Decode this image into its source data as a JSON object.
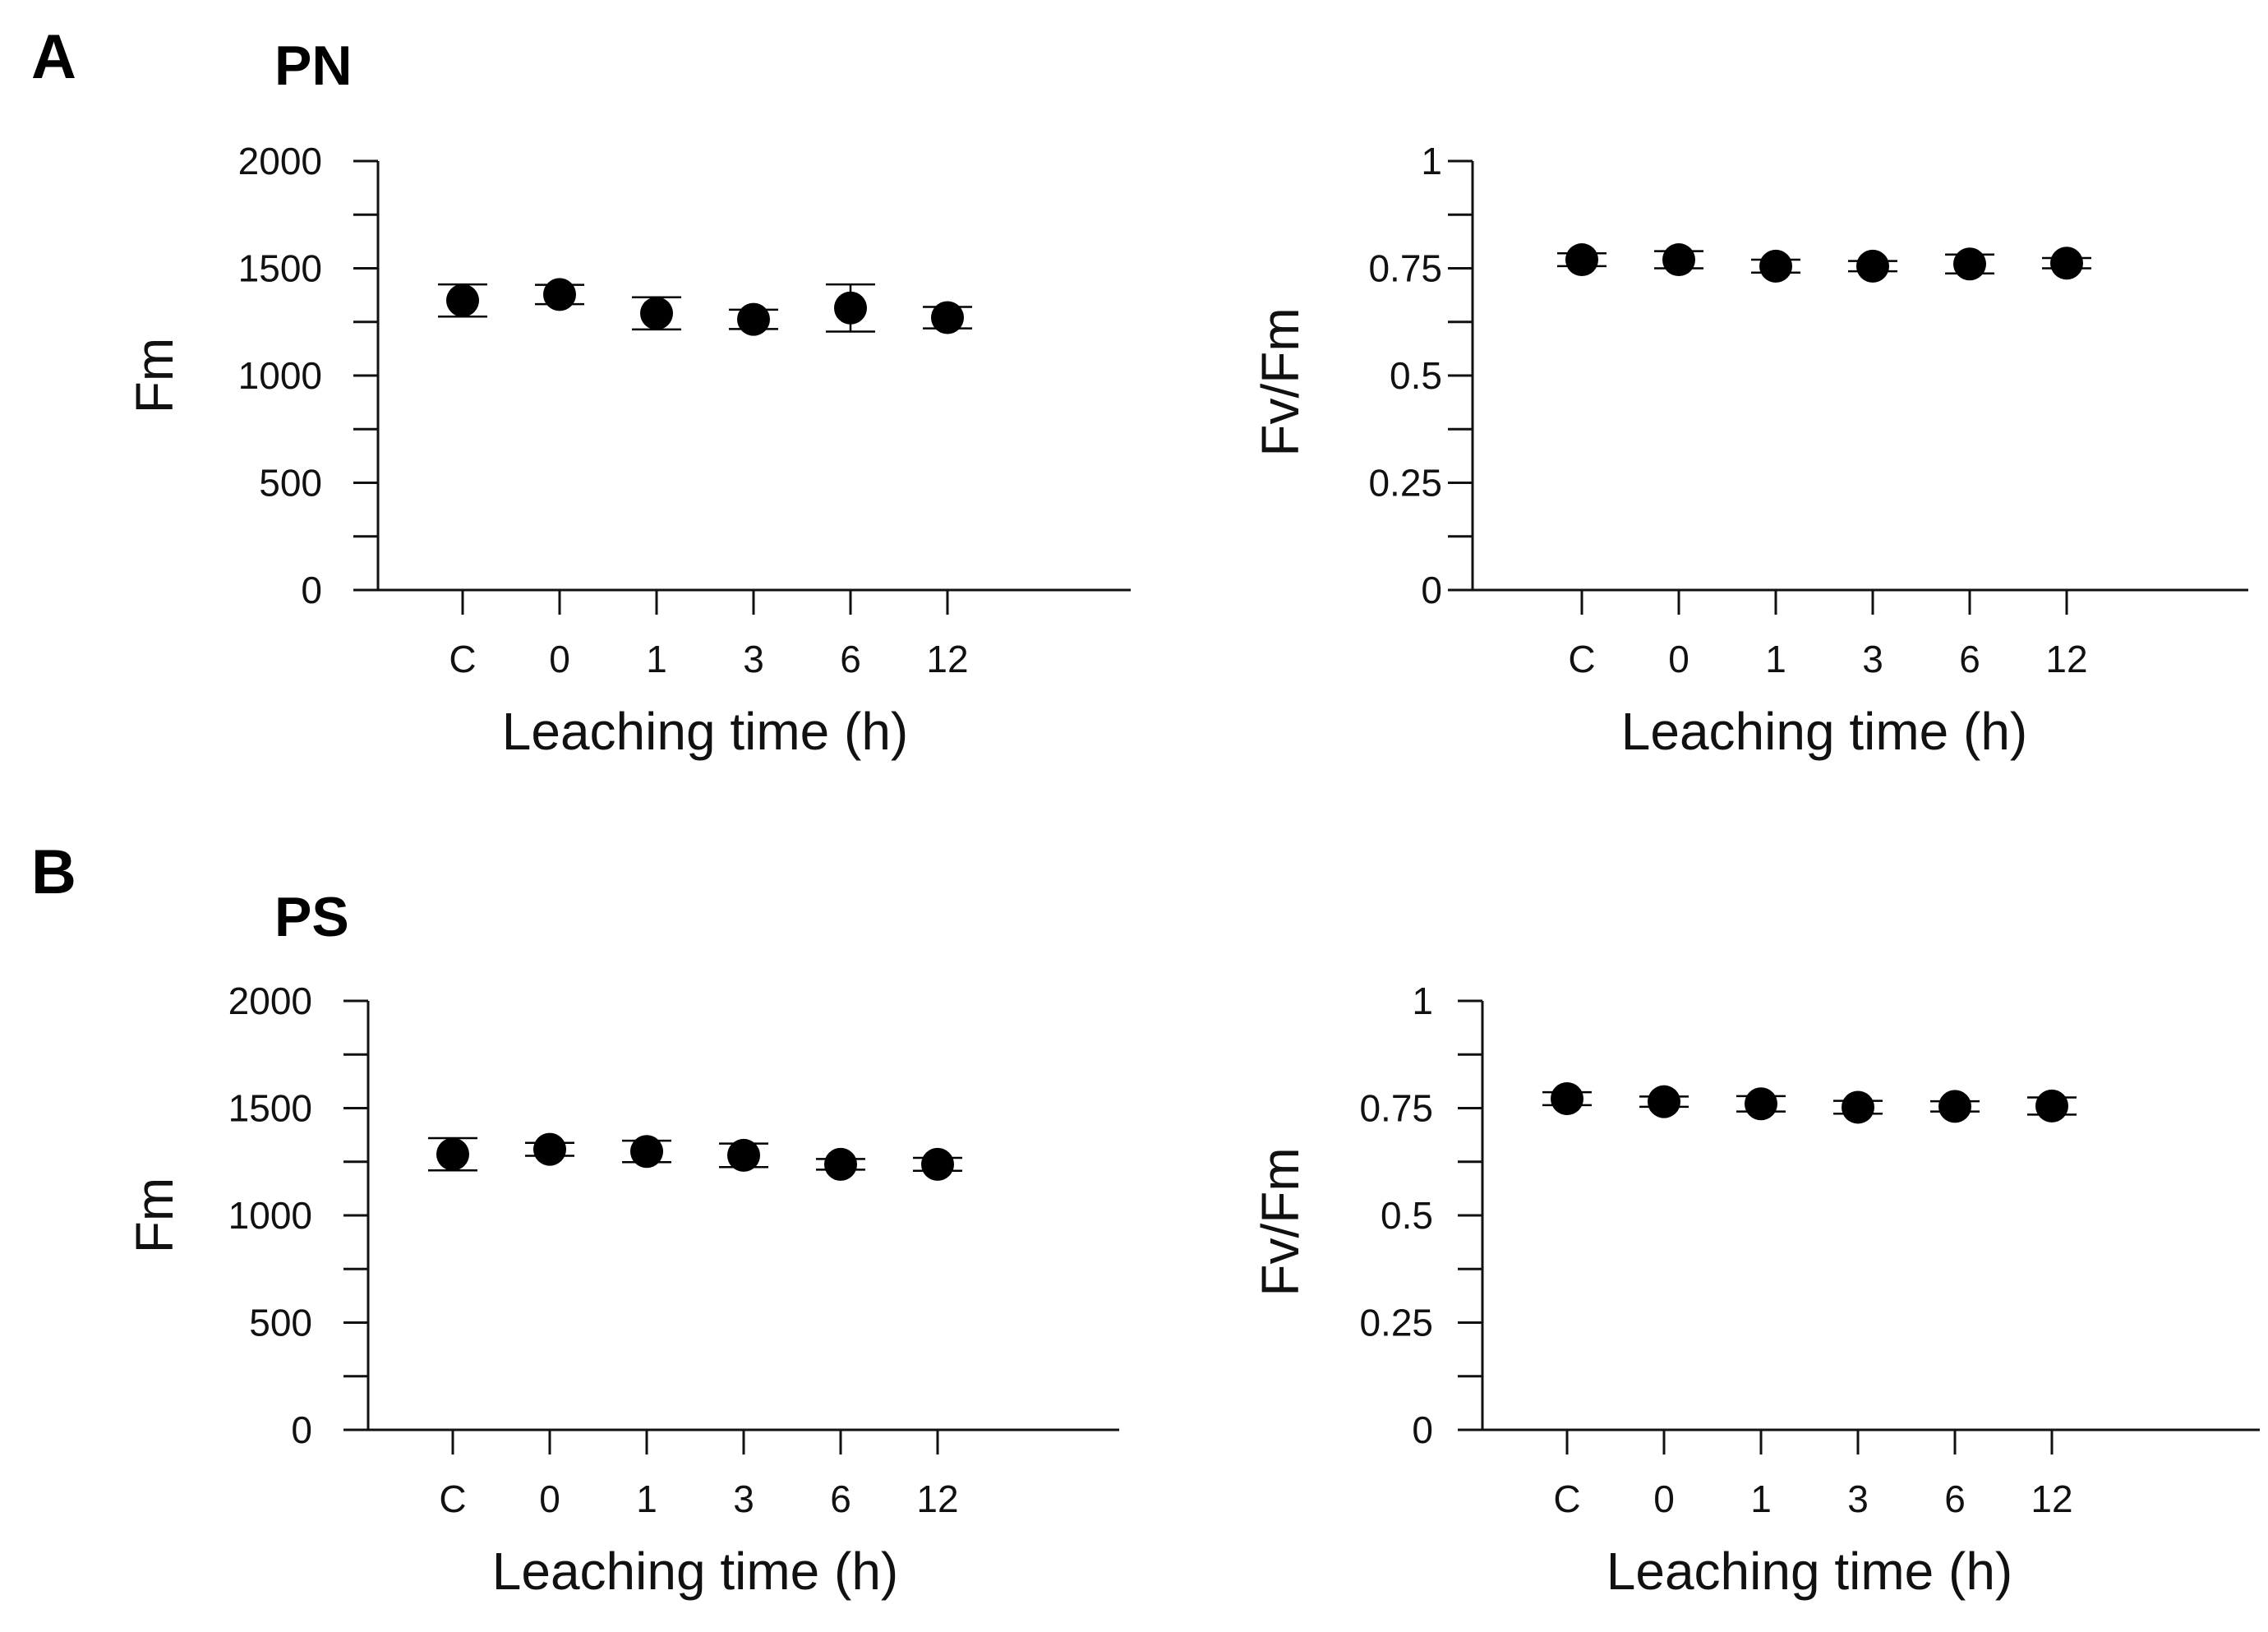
{
  "figure": {
    "panel_a_label": "A",
    "panel_a_title": "PN",
    "panel_b_label": "B",
    "panel_b_title": "PS"
  },
  "colors": {
    "ink": "#000000",
    "axis": "#111111"
  },
  "chart_data": [
    {
      "id": "a1",
      "type": "scatter",
      "panel": "A",
      "categories": [
        "C",
        "0",
        "1",
        "3",
        "6",
        "12"
      ],
      "values": [
        1350,
        1378,
        1290,
        1262,
        1315,
        1270
      ],
      "errors": [
        75,
        45,
        75,
        45,
        110,
        50
      ],
      "xlabel": "Leaching time (h)",
      "ylabel": "Fm",
      "ylim": [
        0,
        2000
      ],
      "yticks": [
        "0",
        "500",
        "1000",
        "1500",
        "2000"
      ],
      "ytick_values": [
        0,
        500,
        1000,
        1500,
        2000
      ],
      "minor_step": 250
    },
    {
      "id": "a2",
      "type": "scatter",
      "panel": "A",
      "categories": [
        "C",
        "0",
        "1",
        "3",
        "6",
        "12"
      ],
      "values": [
        0.77,
        0.77,
        0.755,
        0.755,
        0.76,
        0.762
      ],
      "errors": [
        0.015,
        0.02,
        0.015,
        0.012,
        0.022,
        0.012
      ],
      "xlabel": "Leaching time (h)",
      "ylabel": "Fv/Fm",
      "ylim": [
        0,
        1
      ],
      "yticks": [
        "0",
        "0.25",
        "0.5",
        "0.75",
        "1"
      ],
      "ytick_values": [
        0,
        0.25,
        0.5,
        0.75,
        1
      ],
      "minor_step": 0.125
    },
    {
      "id": "b1",
      "type": "scatter",
      "panel": "B",
      "categories": [
        "C",
        "0",
        "1",
        "3",
        "6",
        "12"
      ],
      "values": [
        1285,
        1308,
        1298,
        1280,
        1238,
        1238
      ],
      "errors": [
        75,
        30,
        50,
        55,
        25,
        30
      ],
      "xlabel": "Leaching time (h)",
      "ylabel": "Fm",
      "ylim": [
        0,
        2000
      ],
      "yticks": [
        "0",
        "500",
        "1000",
        "1500",
        "2000"
      ],
      "ytick_values": [
        0,
        500,
        1000,
        1500,
        2000
      ],
      "minor_step": 250
    },
    {
      "id": "b2",
      "type": "scatter",
      "panel": "B",
      "categories": [
        "C",
        "0",
        "1",
        "3",
        "6",
        "12"
      ],
      "values": [
        0.772,
        0.765,
        0.76,
        0.752,
        0.754,
        0.755
      ],
      "errors": [
        0.015,
        0.012,
        0.018,
        0.015,
        0.012,
        0.02
      ],
      "xlabel": "Leaching time (h)",
      "ylabel": "Fv/Fm",
      "ylim": [
        0,
        1
      ],
      "yticks": [
        "0",
        "0.25",
        "0.5",
        "0.75",
        "1"
      ],
      "ytick_values": [
        0,
        0.25,
        0.5,
        0.75,
        1
      ],
      "minor_step": 0.125
    }
  ]
}
